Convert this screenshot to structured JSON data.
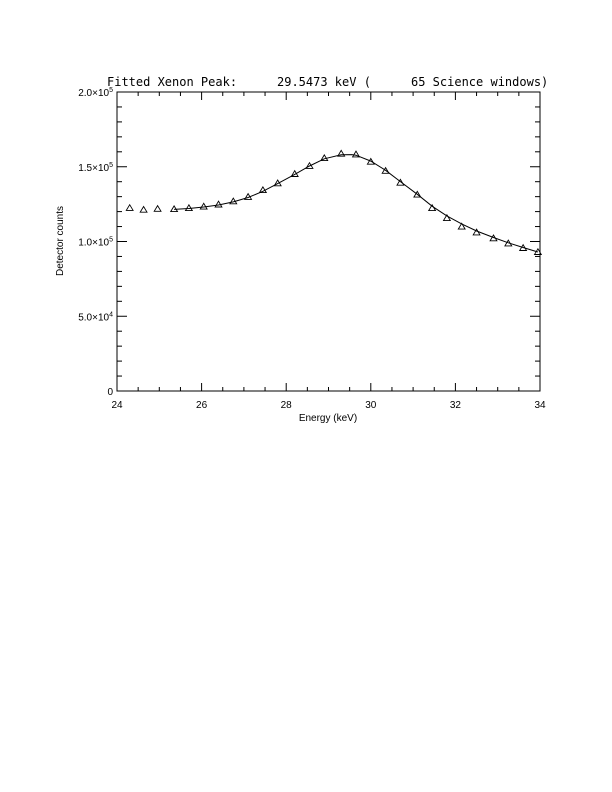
{
  "chart_data": {
    "type": "scatter",
    "title_parts": [
      "Fitted Xenon Peak:",
      "29.5473 keV (",
      "65 Science windows)"
    ],
    "xlabel": "Energy (keV)",
    "ylabel": "Detector counts",
    "xlim": [
      24,
      34
    ],
    "ylim": [
      0,
      200000
    ],
    "x_ticks": [
      24,
      26,
      28,
      30,
      32,
      34
    ],
    "x_tick_labels": [
      "24",
      "26",
      "28",
      "30",
      "32",
      "34"
    ],
    "y_ticks": [
      0,
      50000,
      100000,
      150000,
      200000
    ],
    "y_tick_labels": [
      {
        "mant": "0",
        "exp": ""
      },
      {
        "mant": "5.0×10",
        "exp": "4"
      },
      {
        "mant": "1.0×10",
        "exp": "5"
      },
      {
        "mant": "1.5×10",
        "exp": "5"
      },
      {
        "mant": "2.0×10",
        "exp": "5"
      }
    ],
    "series": [
      {
        "kind": "points",
        "marker": "triangle",
        "x": [
          24.3,
          24.63,
          24.96,
          25.35,
          25.7,
          26.05,
          26.4,
          26.75,
          27.1,
          27.45,
          27.8,
          28.2,
          28.55,
          28.9,
          29.3,
          29.65,
          30.0,
          30.35,
          30.7,
          31.1,
          31.45,
          31.8,
          32.15,
          32.5,
          32.9,
          33.25,
          33.6,
          33.95
        ],
        "y": [
          122500,
          121300,
          121900,
          121700,
          122400,
          123400,
          124800,
          126900,
          129900,
          134400,
          139000,
          145200,
          150600,
          155800,
          158800,
          158300,
          153400,
          147300,
          139400,
          131400,
          122400,
          115700,
          110000,
          106100,
          102200,
          98800,
          95700,
          93000
        ]
      },
      {
        "kind": "line",
        "x": [
          25.35,
          25.7,
          26.05,
          26.4,
          26.75,
          27.1,
          27.45,
          27.8,
          28.2,
          28.55,
          28.9,
          29.3,
          29.55,
          29.65,
          30.0,
          30.35,
          30.7,
          31.1,
          31.45,
          31.8,
          32.15,
          32.5,
          32.9,
          33.25,
          33.6,
          33.95
        ],
        "y": [
          121500,
          122100,
          123100,
          124400,
          126500,
          129400,
          133600,
          138700,
          144900,
          150500,
          155300,
          158000,
          158100,
          157700,
          153800,
          147600,
          140100,
          131600,
          123600,
          117100,
          111800,
          107000,
          102700,
          99100,
          96000,
          93000
        ]
      }
    ]
  }
}
